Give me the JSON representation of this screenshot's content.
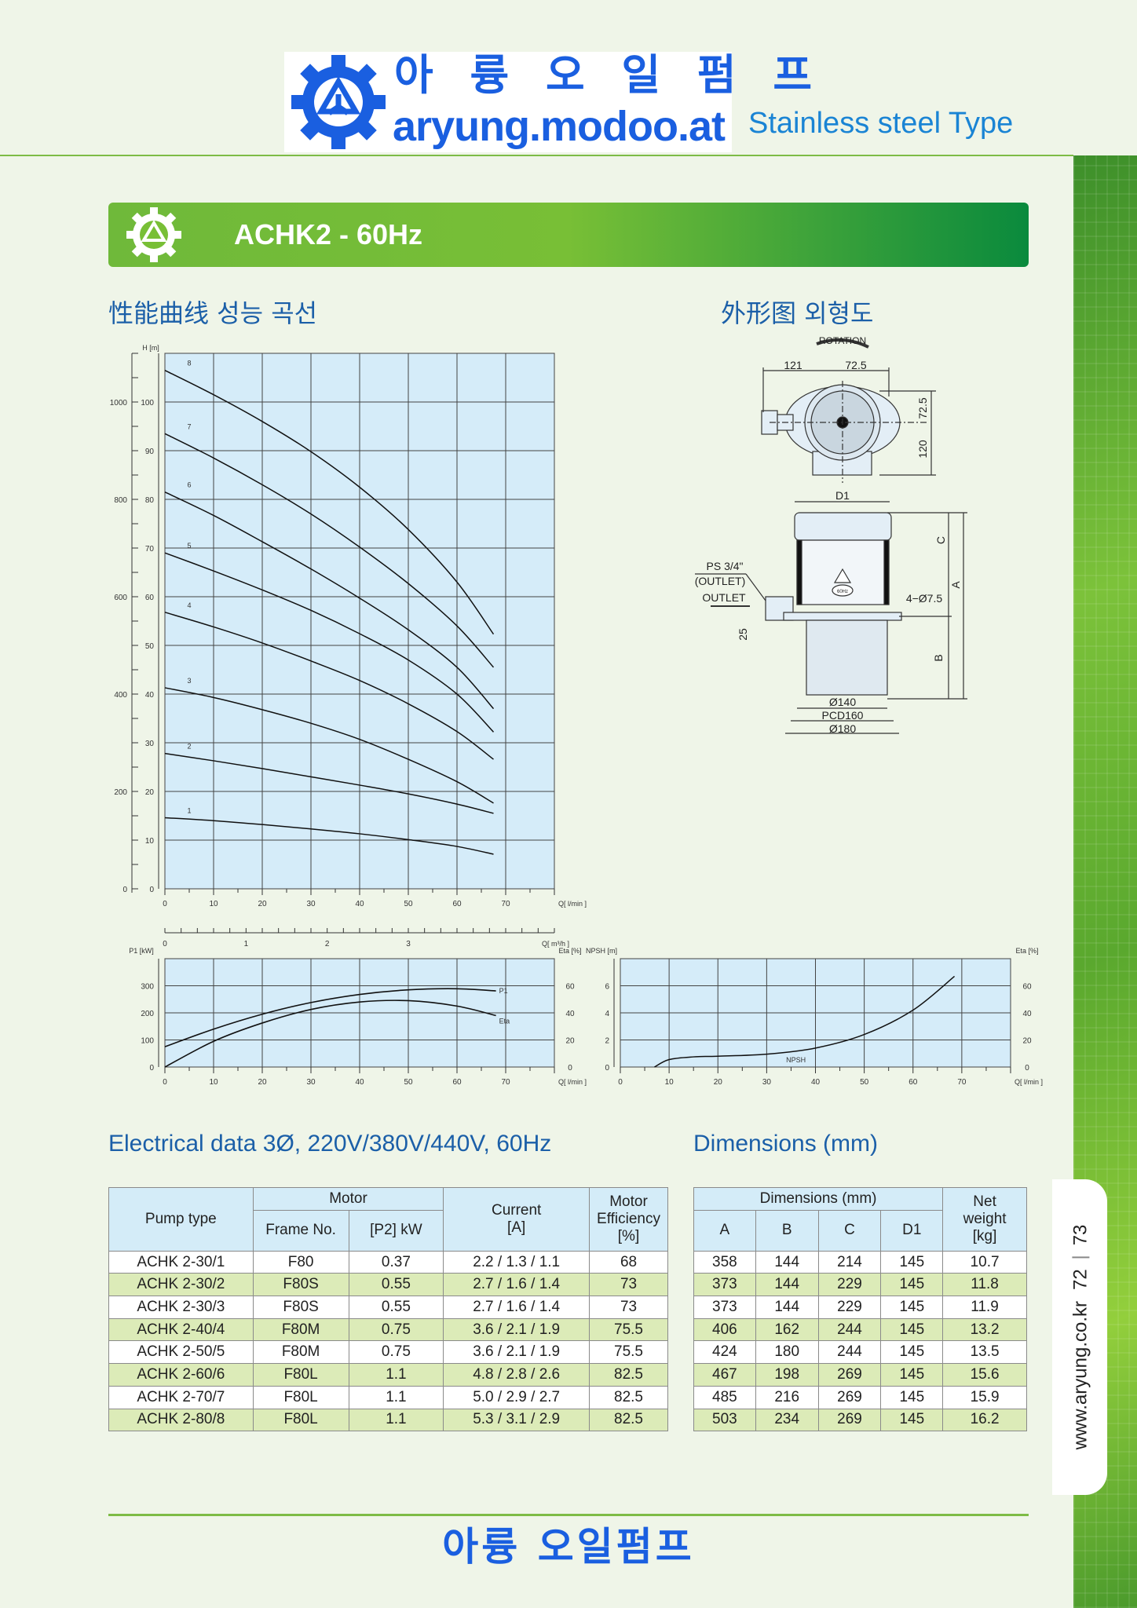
{
  "header": {
    "logo_korean": "아 륭 오 일 펌 프",
    "logo_url": "aryung.modoo.at",
    "type_label": "Stainless steel Type"
  },
  "side_tab": {
    "website": "www.aryung.co.kr",
    "page_left": "72",
    "page_right": "73"
  },
  "title_bar": {
    "title": "ACHK2 - 60Hz"
  },
  "sections": {
    "performance": "性能曲线 성능 곡선",
    "outline": "外形图 외형도",
    "electrical": "Electrical data 3Ø, 220V/380V/440V, 60Hz",
    "dimensions": "Dimensions (mm)"
  },
  "colors": {
    "brand_blue": "#1a5fe0",
    "heading_blue": "#1b5fa8",
    "green": "#7dbb45",
    "chart_bg": "#d5ecf9",
    "table_header": "#d4ecf8",
    "table_alt_row": "#dcebb8"
  },
  "chart_data": [
    {
      "type": "line",
      "ylabel": "H [m]",
      "xlabel": "Q[ l/min ]",
      "x2label": "Q[ m³/h ]",
      "xlim": [
        0,
        80
      ],
      "ylim": [
        0,
        110
      ],
      "grid": true,
      "xticks": [
        0,
        10,
        20,
        30,
        40,
        50,
        60,
        70
      ],
      "yticks": [
        0,
        10,
        20,
        30,
        40,
        50,
        60,
        70,
        80,
        90,
        100
      ],
      "x2ticks": [
        "0",
        "1",
        "2",
        "3"
      ],
      "x2tick_values_lmin": [
        0,
        16.67,
        33.33,
        50
      ],
      "y2ticks": [
        "0",
        "200",
        "400",
        "600",
        "800",
        "1000"
      ],
      "y2tick_positions_m": [
        0,
        20,
        40,
        60,
        80,
        100
      ],
      "x": [
        0,
        10,
        20,
        30,
        40,
        50,
        60,
        67.5
      ],
      "series": [
        {
          "name": "1",
          "values": [
            14.6,
            14,
            13.2,
            12.3,
            11.3,
            10.1,
            8.7,
            7.1
          ]
        },
        {
          "name": "2",
          "values": [
            27.8,
            26.3,
            24.7,
            23,
            21.3,
            19.5,
            17.4,
            15.5
          ]
        },
        {
          "name": "3",
          "values": [
            41.3,
            39.3,
            36.8,
            34,
            30.7,
            26.6,
            22,
            17.6
          ]
        },
        {
          "name": "4",
          "values": [
            56.8,
            53.8,
            50.5,
            46.8,
            42.8,
            38,
            32.3,
            26.6
          ]
        },
        {
          "name": "5",
          "values": [
            69,
            65.3,
            61.4,
            57.2,
            52.4,
            47,
            40,
            32.2
          ]
        },
        {
          "name": "6",
          "values": [
            81.5,
            76.7,
            71.3,
            65.7,
            59.7,
            53.2,
            45.5,
            37
          ]
        },
        {
          "name": "7",
          "values": [
            93.5,
            88.5,
            83,
            77,
            70.2,
            62.7,
            54,
            45.5
          ]
        },
        {
          "name": "8",
          "values": [
            106.5,
            101.5,
            96,
            89.8,
            82.5,
            73.8,
            63,
            52.3
          ]
        }
      ]
    },
    {
      "type": "line",
      "ylabel": "P1 [kW]",
      "y2label": "Eta [%]",
      "xlabel": "Q[ l/min ]",
      "xlim": [
        0,
        80
      ],
      "ylim": [
        0,
        400
      ],
      "y2lim": [
        0,
        80
      ],
      "grid": true,
      "xticks": [
        0,
        10,
        20,
        30,
        40,
        50,
        60,
        70
      ],
      "yticks": [
        0,
        100,
        200,
        300
      ],
      "y2ticks": [
        0,
        20,
        40,
        60
      ],
      "x": [
        0,
        10,
        20,
        30,
        40,
        50,
        60,
        68
      ],
      "series": [
        {
          "name": "P1",
          "axis": "left",
          "values": [
            75,
            140,
            195,
            238,
            268,
            285,
            289,
            281
          ]
        },
        {
          "name": "Eta",
          "axis": "right",
          "values": [
            0,
            19,
            32.5,
            42.5,
            48,
            49,
            45,
            38
          ]
        }
      ]
    },
    {
      "type": "line",
      "ylabel": "NPSH [m]",
      "y2label": "Eta [%]",
      "xlabel": "Q[ l/min ]",
      "xlim": [
        0,
        80
      ],
      "ylim": [
        0,
        8
      ],
      "y2lim": [
        0,
        80
      ],
      "grid": true,
      "xticks": [
        0,
        10,
        20,
        30,
        40,
        50,
        60,
        70
      ],
      "yticks": [
        0,
        2,
        4,
        6
      ],
      "y2ticks": [
        0,
        20,
        40,
        60
      ],
      "x": [
        7,
        10,
        15,
        20,
        30,
        40,
        50,
        60,
        68.5
      ],
      "series": [
        {
          "name": "NPSH",
          "values": [
            0,
            0.55,
            0.75,
            0.8,
            0.95,
            1.4,
            2.4,
            4.2,
            6.7
          ]
        }
      ]
    }
  ],
  "diagram": {
    "rotation": "ROTATION",
    "d121": "121",
    "d72_5a": "72.5",
    "d72_5b": "72.5",
    "d120": "120",
    "d1": "D1",
    "ps": "PS 3/4\"",
    "outlet_paren": "(OUTLET)",
    "outlet": "OUTLET",
    "holes": "4−Ø7.5",
    "d25": "25",
    "c": "C",
    "a": "A",
    "b": "B",
    "phi140": "Ø140",
    "pcd160": "PCD160",
    "phi180": "Ø180",
    "hz": "60Hz"
  },
  "electrical_table": {
    "headers": {
      "pump_type": "Pump type",
      "motor": "Motor",
      "frame": "Frame No.",
      "p2": "[P2] kW",
      "current": "Current\n[A]",
      "current1": "Current",
      "current2": "[A]",
      "eff1": "Motor",
      "eff2": "Efficiency",
      "eff3": "[%]"
    },
    "rows": [
      [
        "ACHK 2-30/1",
        "F80",
        "0.37",
        "2.2 / 1.3 / 1.1",
        "68"
      ],
      [
        "ACHK 2-30/2",
        "F80S",
        "0.55",
        "2.7 / 1.6 / 1.4",
        "73"
      ],
      [
        "ACHK 2-30/3",
        "F80S",
        "0.55",
        "2.7 / 1.6 / 1.4",
        "73"
      ],
      [
        "ACHK 2-40/4",
        "F80M",
        "0.75",
        "3.6 / 2.1 / 1.9",
        "75.5"
      ],
      [
        "ACHK 2-50/5",
        "F80M",
        "0.75",
        "3.6 / 2.1 / 1.9",
        "75.5"
      ],
      [
        "ACHK 2-60/6",
        "F80L",
        "1.1",
        "4.8 / 2.8 / 2.6",
        "82.5"
      ],
      [
        "ACHK 2-70/7",
        "F80L",
        "1.1",
        "5.0 / 2.9 / 2.7",
        "82.5"
      ],
      [
        "ACHK 2-80/8",
        "F80L",
        "1.1",
        "5.3 / 3.1 / 2.9",
        "82.5"
      ]
    ]
  },
  "dimensions_table": {
    "headers": {
      "group": "Dimensions (mm)",
      "a": "A",
      "b": "B",
      "c": "C",
      "d1": "D1",
      "w1": "Net",
      "w2": "weight",
      "w3": "[kg]"
    },
    "rows": [
      [
        "358",
        "144",
        "214",
        "145",
        "10.7"
      ],
      [
        "373",
        "144",
        "229",
        "145",
        "11.8"
      ],
      [
        "373",
        "144",
        "229",
        "145",
        "11.9"
      ],
      [
        "406",
        "162",
        "244",
        "145",
        "13.2"
      ],
      [
        "424",
        "180",
        "244",
        "145",
        "13.5"
      ],
      [
        "467",
        "198",
        "269",
        "145",
        "15.6"
      ],
      [
        "485",
        "216",
        "269",
        "145",
        "15.9"
      ],
      [
        "503",
        "234",
        "269",
        "145",
        "16.2"
      ]
    ]
  },
  "footer": {
    "brand": "아륭 오일펌프"
  }
}
